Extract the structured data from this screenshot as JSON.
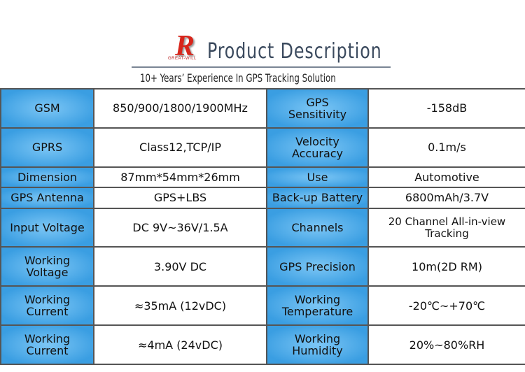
{
  "header": {
    "logo_text": "GREAT-WILL",
    "title": "Product Description",
    "subtitle": "10+ Years’ Experience In GPS Tracking Solution"
  },
  "table": {
    "rows": [
      [
        [
          "GSM"
        ],
        [
          "850/900/1800/1900MHz"
        ],
        [
          "GPS",
          "Sensitivity"
        ],
        [
          "-158dB"
        ]
      ],
      [
        [
          "GPRS"
        ],
        [
          "Class12,TCP/IP"
        ],
        [
          "Velocity",
          "Accuracy"
        ],
        [
          "0.1m/s"
        ]
      ],
      [
        [
          "Dimension"
        ],
        [
          "87mm*54mm*26mm"
        ],
        [
          "Use"
        ],
        [
          "Automotive"
        ]
      ],
      [
        [
          "GPS Antenna"
        ],
        [
          "GPS+LBS"
        ],
        [
          "Back-up Battery"
        ],
        [
          "6800mAh/3.7V"
        ]
      ],
      [
        [
          "Input Voltage"
        ],
        [
          "DC 9V~36V/1.5A"
        ],
        [
          "Channels"
        ],
        [
          "20 Channel All-in-view",
          "Tracking"
        ]
      ],
      [
        [
          "Working",
          "Voltage"
        ],
        [
          "3.90V DC"
        ],
        [
          "GPS Precision"
        ],
        [
          "10m(2D RM)"
        ]
      ],
      [
        [
          "Working",
          "Current"
        ],
        [
          "≈35mA (12vDC)"
        ],
        [
          "Working",
          "Temperature"
        ],
        [
          "-20℃~+70℃"
        ]
      ],
      [
        [
          "Working",
          "Current"
        ],
        [
          "≈4mA (24vDC)"
        ],
        [
          "Working",
          "Humidity"
        ],
        [
          "20%~80%RH"
        ]
      ]
    ]
  }
}
